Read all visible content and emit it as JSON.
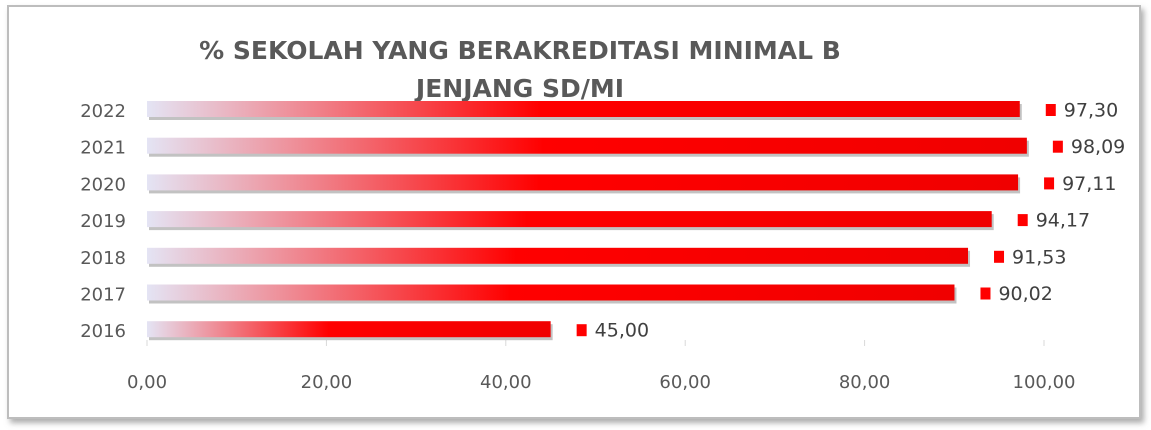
{
  "chart_data": {
    "type": "bar",
    "orientation": "horizontal",
    "title": [
      "% SEKOLAH YANG BERAKREDITASI MINIMAL B",
      "JENJANG SD/MI"
    ],
    "categories": [
      "2022",
      "2021",
      "2020",
      "2019",
      "2018",
      "2017",
      "2016"
    ],
    "values": [
      97.3,
      98.09,
      97.11,
      94.17,
      91.53,
      90.02,
      45.0
    ],
    "value_labels": [
      "97,30",
      "98,09",
      "97,11",
      "94,17",
      "91,53",
      "90,02",
      "45,00"
    ],
    "color": "#ff0000",
    "xlim": [
      0,
      100
    ],
    "xticks": [
      {
        "value": 0,
        "label": "0,00"
      },
      {
        "value": 20,
        "label": "20,00"
      },
      {
        "value": 40,
        "label": "40,00"
      },
      {
        "value": 60,
        "label": "60,00"
      },
      {
        "value": 80,
        "label": "80,00"
      },
      {
        "value": 100,
        "label": "100,00"
      }
    ]
  }
}
